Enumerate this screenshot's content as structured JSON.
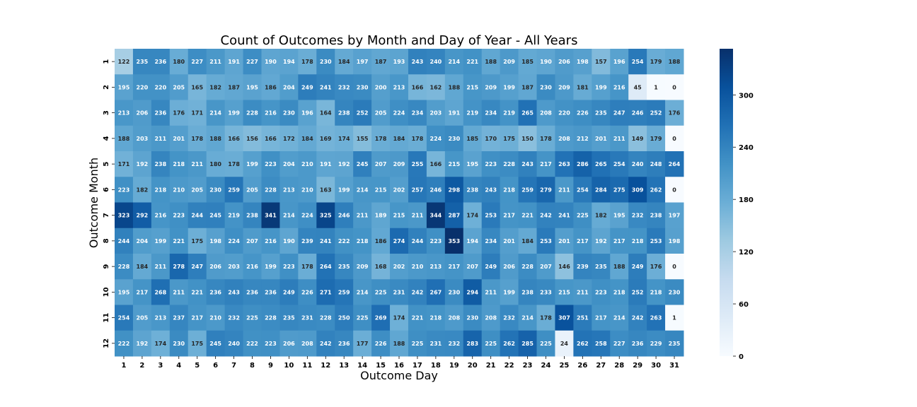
{
  "chart_data": {
    "type": "heatmap",
    "title": "Count of Outcomes by Month and Day of Year - All Years",
    "xlabel": "Outcome Day",
    "ylabel": "Outcome Month",
    "x_categories": [
      "1",
      "2",
      "3",
      "4",
      "5",
      "6",
      "7",
      "8",
      "9",
      "10",
      "11",
      "12",
      "13",
      "14",
      "15",
      "16",
      "17",
      "18",
      "19",
      "20",
      "21",
      "22",
      "23",
      "24",
      "25",
      "26",
      "27",
      "28",
      "29",
      "30",
      "31"
    ],
    "y_categories": [
      "1",
      "2",
      "3",
      "4",
      "5",
      "6",
      "7",
      "8",
      "9",
      "10",
      "11",
      "12"
    ],
    "values": [
      [
        122,
        235,
        236,
        180,
        227,
        211,
        191,
        227,
        190,
        194,
        178,
        230,
        184,
        197,
        187,
        193,
        243,
        240,
        214,
        221,
        188,
        209,
        185,
        190,
        206,
        198,
        157,
        196,
        254,
        179,
        188
      ],
      [
        195,
        220,
        220,
        205,
        165,
        182,
        187,
        195,
        186,
        204,
        249,
        241,
        232,
        230,
        200,
        213,
        166,
        162,
        188,
        215,
        209,
        199,
        187,
        230,
        209,
        181,
        199,
        216,
        45,
        1,
        0
      ],
      [
        213,
        206,
        236,
        176,
        171,
        214,
        199,
        228,
        216,
        230,
        196,
        164,
        238,
        252,
        205,
        224,
        234,
        203,
        191,
        219,
        234,
        219,
        265,
        208,
        220,
        226,
        235,
        247,
        246,
        252,
        176
      ],
      [
        188,
        203,
        211,
        201,
        178,
        188,
        166,
        156,
        166,
        172,
        184,
        169,
        174,
        155,
        178,
        184,
        178,
        224,
        230,
        185,
        170,
        175,
        150,
        178,
        208,
        212,
        201,
        211,
        149,
        179,
        0
      ],
      [
        171,
        192,
        238,
        218,
        211,
        180,
        178,
        199,
        223,
        204,
        210,
        191,
        192,
        245,
        207,
        209,
        255,
        166,
        215,
        195,
        223,
        228,
        243,
        217,
        263,
        286,
        265,
        254,
        240,
        248,
        264
      ],
      [
        223,
        182,
        218,
        210,
        205,
        230,
        259,
        205,
        228,
        213,
        210,
        163,
        199,
        214,
        215,
        202,
        257,
        246,
        298,
        238,
        243,
        218,
        259,
        279,
        211,
        254,
        284,
        275,
        309,
        262,
        0
      ],
      [
        323,
        292,
        216,
        223,
        244,
        245,
        219,
        238,
        341,
        214,
        224,
        325,
        246,
        211,
        189,
        215,
        211,
        344,
        287,
        174,
        253,
        217,
        221,
        242,
        241,
        225,
        182,
        195,
        232,
        238,
        197
      ],
      [
        244,
        204,
        199,
        221,
        175,
        198,
        224,
        207,
        216,
        190,
        239,
        241,
        222,
        218,
        186,
        274,
        244,
        223,
        353,
        194,
        234,
        201,
        184,
        253,
        201,
        217,
        192,
        217,
        218,
        253,
        198
      ],
      [
        228,
        184,
        211,
        278,
        247,
        206,
        203,
        216,
        199,
        223,
        178,
        264,
        235,
        209,
        168,
        202,
        210,
        213,
        217,
        207,
        249,
        206,
        228,
        207,
        146,
        239,
        235,
        188,
        249,
        176,
        0
      ],
      [
        195,
        217,
        268,
        211,
        221,
        236,
        243,
        236,
        236,
        249,
        226,
        271,
        259,
        214,
        225,
        231,
        242,
        267,
        230,
        294,
        211,
        199,
        238,
        233,
        215,
        211,
        223,
        218,
        252,
        218,
        230
      ],
      [
        254,
        205,
        213,
        237,
        217,
        210,
        232,
        225,
        228,
        235,
        231,
        228,
        250,
        225,
        269,
        174,
        221,
        218,
        208,
        230,
        208,
        232,
        214,
        178,
        307,
        251,
        217,
        214,
        242,
        263,
        1
      ],
      [
        222,
        192,
        174,
        230,
        175,
        245,
        240,
        222,
        223,
        206,
        208,
        242,
        236,
        177,
        226,
        188,
        225,
        231,
        232,
        283,
        225,
        262,
        285,
        225,
        24,
        262,
        258,
        227,
        236,
        229,
        235
      ]
    ],
    "vmin": 0,
    "vmax": 353,
    "colormap": "Blues",
    "colorbar_ticks": [
      "0",
      "60",
      "120",
      "180",
      "240",
      "300"
    ]
  }
}
